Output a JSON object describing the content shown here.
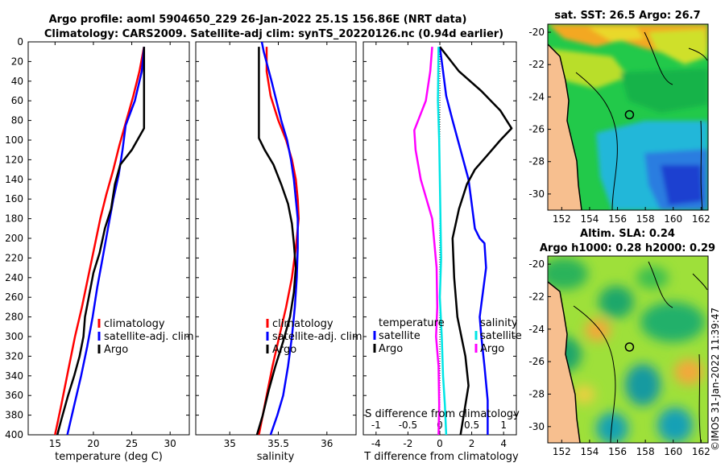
{
  "title": {
    "line1": "Argo profile: aoml 5904650_229 26-Jan-2022 25.1S 156.86E (NRT data)",
    "line2": "Climatology: CARS2009. Satellite-adj clim: synTS_20220126.nc (0.94d earlier)"
  },
  "credit": "©IMOS 31-Jan-2022 11:39:47",
  "colors": {
    "red": "#ff0000",
    "blue": "#0000ff",
    "black": "#000000",
    "cyan": "#00e5e5",
    "magenta": "#ff00ff",
    "land": "#f7bf8f"
  },
  "chart_data": [
    {
      "type": "line",
      "id": "temperature",
      "xlabel": "temperature (deg C)",
      "xlim": [
        11.5,
        32.5
      ],
      "xticks": [
        15,
        20,
        25,
        30
      ],
      "ylim": [
        0,
        400
      ],
      "yticks": [
        0,
        20,
        40,
        60,
        80,
        100,
        120,
        140,
        160,
        180,
        200,
        220,
        240,
        260,
        280,
        300,
        320,
        340,
        360,
        380,
        400
      ],
      "legend": [
        "climatology",
        "satellite-adj. clim",
        "Argo"
      ],
      "series": [
        {
          "name": "climatology",
          "color": "red",
          "x": [
            26.6,
            26.0,
            25.2,
            24.3,
            23.4,
            22.6,
            21.7,
            20.9,
            20.1,
            19.3,
            18.5,
            17.6,
            16.7,
            15.8,
            15.0
          ],
          "y": [
            5,
            30,
            55,
            80,
            105,
            130,
            155,
            180,
            210,
            240,
            270,
            300,
            335,
            370,
            400
          ]
        },
        {
          "name": "satellite-adj. clim",
          "color": "blue",
          "x": [
            26.6,
            26.3,
            25.4,
            24.2,
            23.8,
            23.3,
            22.6,
            21.9,
            21.2,
            20.5,
            19.9,
            19.2,
            18.4,
            17.5,
            16.6
          ],
          "y": [
            5,
            30,
            60,
            85,
            110,
            135,
            160,
            190,
            220,
            250,
            280,
            310,
            340,
            370,
            400
          ]
        },
        {
          "name": "Argo",
          "color": "black",
          "x": [
            26.6,
            26.6,
            26.6,
            26.6,
            26.6,
            25.0,
            23.5,
            22.8,
            22.3,
            21.5,
            20.8,
            20.0,
            19.4,
            18.9,
            18.7,
            18.2,
            17.5,
            16.7,
            15.8,
            15.3
          ],
          "y": [
            5,
            30,
            60,
            85,
            88,
            110,
            125,
            145,
            170,
            190,
            215,
            235,
            260,
            280,
            300,
            320,
            340,
            360,
            385,
            400
          ]
        }
      ]
    },
    {
      "type": "line",
      "id": "salinity",
      "xlabel": "salinity",
      "xlim": [
        34.65,
        36.3
      ],
      "xticks": [
        35,
        35.5,
        36
      ],
      "ylim": [
        0,
        400
      ],
      "legend": [
        "climatology",
        "satellite-adj. clim",
        "Argo"
      ],
      "series": [
        {
          "name": "climatology",
          "color": "red",
          "x": [
            35.38,
            35.38,
            35.42,
            35.5,
            35.58,
            35.64,
            35.68,
            35.7,
            35.71,
            35.68,
            35.64,
            35.58,
            35.51,
            35.44,
            35.37,
            35.3
          ],
          "y": [
            5,
            30,
            55,
            80,
            100,
            120,
            140,
            160,
            180,
            210,
            240,
            270,
            300,
            330,
            365,
            400
          ]
        },
        {
          "name": "satellite-adj. clim",
          "color": "blue",
          "x": [
            35.33,
            35.35,
            35.43,
            35.53,
            35.59,
            35.63,
            35.66,
            35.68,
            35.7,
            35.7,
            35.69,
            35.67,
            35.64,
            35.6,
            35.55,
            35.49,
            35.42
          ],
          "y": [
            0,
            10,
            40,
            80,
            100,
            120,
            140,
            160,
            180,
            210,
            240,
            270,
            300,
            330,
            360,
            380,
            400
          ]
        },
        {
          "name": "Argo",
          "color": "black",
          "x": [
            35.3,
            35.3,
            35.3,
            35.3,
            35.3,
            35.36,
            35.45,
            35.53,
            35.6,
            35.64,
            35.66,
            35.68,
            35.66,
            35.62,
            35.55,
            35.47,
            35.4,
            35.34,
            35.28
          ],
          "y": [
            5,
            30,
            60,
            85,
            98,
            110,
            125,
            145,
            165,
            185,
            205,
            230,
            255,
            280,
            305,
            330,
            355,
            380,
            400
          ]
        }
      ]
    },
    {
      "type": "line",
      "id": "difference",
      "xlabel": "T difference from climatology",
      "xlabel_top": "S difference from climatology",
      "xlim": [
        -4.8,
        4.8
      ],
      "xticks": [
        -4,
        -2,
        0,
        2,
        4
      ],
      "xlim_top": [
        -1.2,
        1.2
      ],
      "xticks_top": [
        -1,
        -0.5,
        0,
        0.5,
        1
      ],
      "ylim": [
        0,
        400
      ],
      "legend_temperature": {
        "title": "temperature",
        "entries": [
          "satellite",
          "Argo"
        ]
      },
      "legend_salinity": {
        "title": "salinity",
        "entries": [
          "satellite",
          "Argo"
        ]
      },
      "series": [
        {
          "name": "temperature satellite",
          "color": "blue",
          "axis": "T",
          "x": [
            0.0,
            0.2,
            0.4,
            0.8,
            1.3,
            1.8,
            2.0,
            2.2,
            2.5,
            2.8,
            2.9,
            2.5,
            2.6,
            2.8,
            3.0,
            3.0
          ],
          "y": [
            5,
            30,
            55,
            80,
            110,
            140,
            165,
            190,
            200,
            205,
            230,
            280,
            300,
            330,
            365,
            400
          ]
        },
        {
          "name": "temperature Argo",
          "color": "black",
          "axis": "T",
          "x": [
            0.0,
            1.2,
            2.6,
            3.8,
            4.5,
            3.8,
            3.0,
            2.2,
            1.7,
            1.2,
            0.8,
            0.9,
            1.1,
            1.6,
            1.8,
            1.3
          ],
          "y": [
            5,
            30,
            50,
            70,
            88,
            100,
            115,
            130,
            145,
            170,
            200,
            240,
            280,
            320,
            350,
            400
          ]
        },
        {
          "name": "salinity satellite",
          "color": "cyan",
          "axis": "S",
          "x": [
            -0.02,
            -0.03,
            -0.01,
            0.0,
            0.01,
            0.02,
            0.0,
            0.03,
            0.05,
            0.08,
            0.1
          ],
          "y": [
            5,
            60,
            100,
            140,
            180,
            220,
            260,
            300,
            340,
            370,
            400
          ]
        },
        {
          "name": "salinity Argo",
          "color": "magenta",
          "axis": "S",
          "x": [
            -0.12,
            -0.15,
            -0.22,
            -0.4,
            -0.38,
            -0.3,
            -0.12,
            -0.05,
            -0.04,
            -0.06,
            -0.02,
            -0.01,
            -0.02
          ],
          "y": [
            5,
            30,
            60,
            90,
            110,
            140,
            180,
            230,
            270,
            300,
            330,
            370,
            400
          ]
        }
      ]
    },
    {
      "type": "heatmap",
      "id": "sst-map",
      "title": "sat. SST: 26.5 Argo: 26.7",
      "xticks": [
        152,
        154,
        156,
        158,
        160,
        162
      ],
      "yticks": [
        -20,
        -22,
        -24,
        -26,
        -28,
        -30
      ],
      "xlim": [
        151,
        162.5
      ],
      "ylim": [
        -31,
        -19.5
      ],
      "marker": {
        "lon": 156.86,
        "lat": -25.1
      }
    },
    {
      "type": "heatmap",
      "id": "sla-map",
      "title": "Altim. SLA: 0.24",
      "subtitle": "Argo h1000: 0.28 h2000: 0.29",
      "xticks": [
        152,
        154,
        156,
        158,
        160,
        162
      ],
      "yticks": [
        -20,
        -22,
        -24,
        -26,
        -28,
        -30
      ],
      "xlim": [
        151,
        162.5
      ],
      "ylim": [
        -31,
        -19.5
      ],
      "marker": {
        "lon": 156.86,
        "lat": -25.1
      }
    }
  ]
}
